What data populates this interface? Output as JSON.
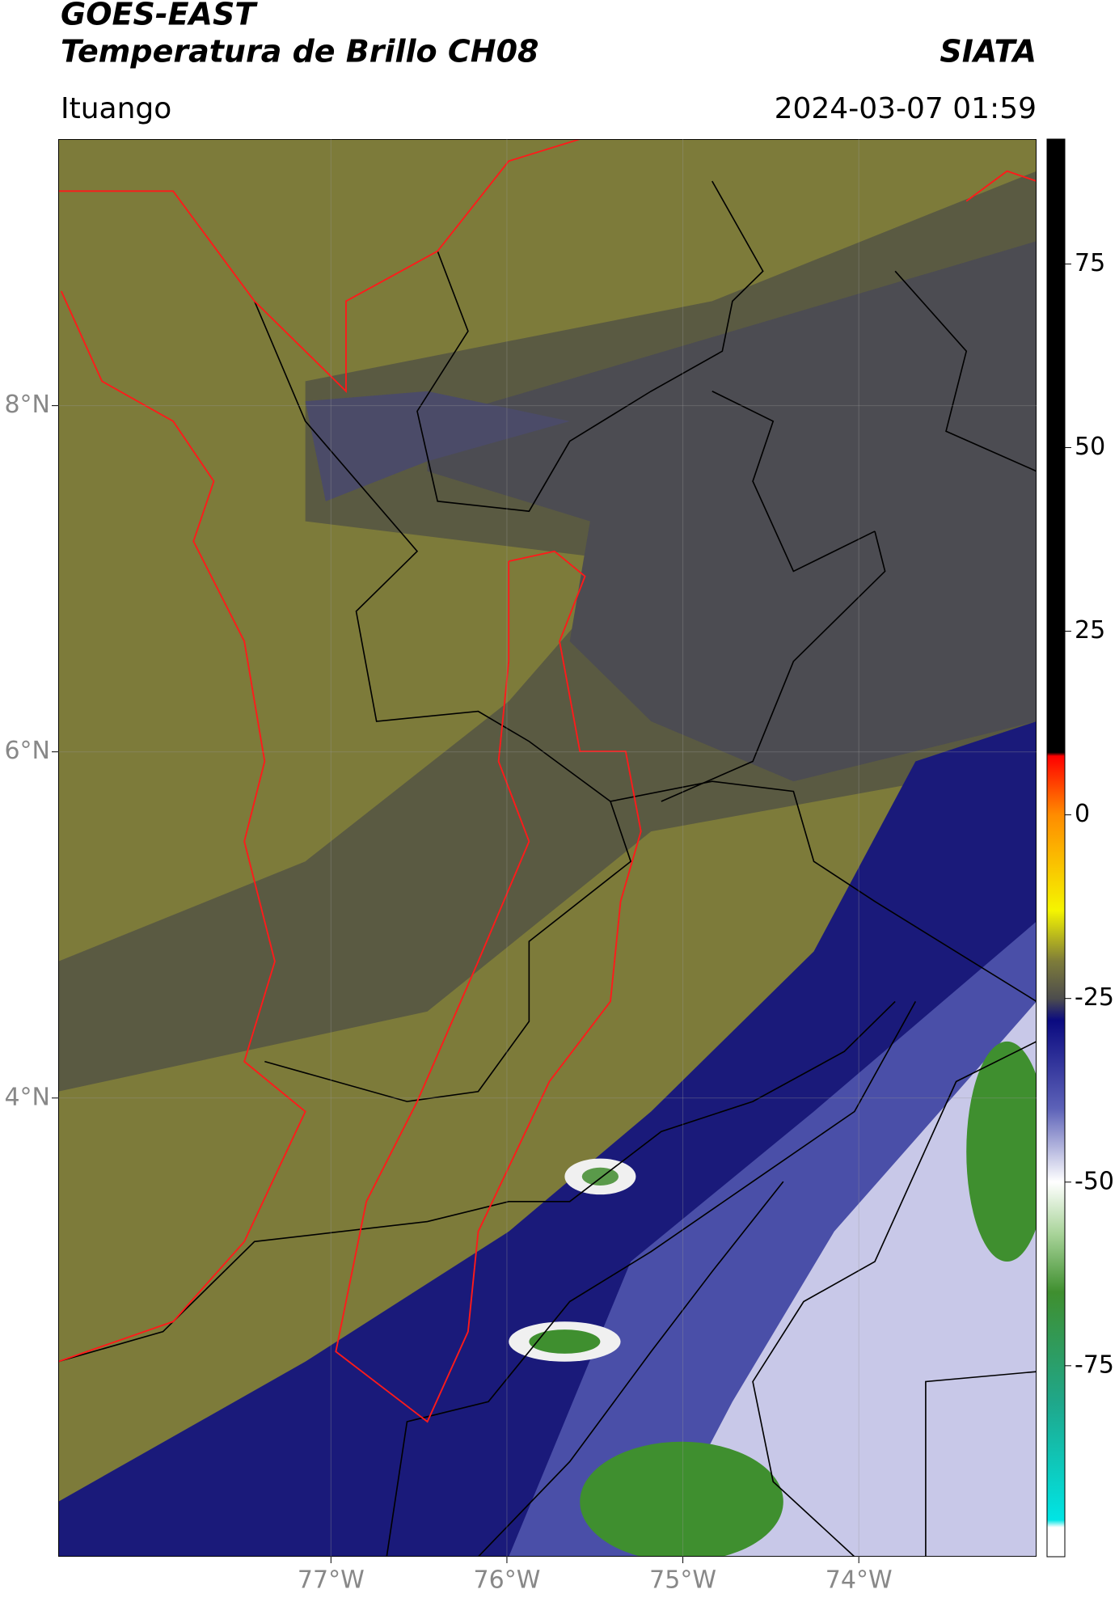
{
  "header": {
    "title": "GOES-EAST",
    "subtitle": "Temperatura de Brillo CH08",
    "brand": "SIATA",
    "location": "Ituango",
    "datetime": "2024-03-07 01:59"
  },
  "map": {
    "xlim": [
      -78.55,
      -72.99
    ],
    "ylim": [
      1.35,
      9.54
    ],
    "xticks": [
      {
        "value": -77,
        "label": "77°W"
      },
      {
        "value": -76,
        "label": "76°W"
      },
      {
        "value": -75,
        "label": "75°W"
      },
      {
        "value": -74,
        "label": "74°W"
      }
    ],
    "yticks": [
      {
        "value": 8,
        "label": "8°N"
      },
      {
        "value": 6,
        "label": "6°N"
      },
      {
        "value": 4,
        "label": "4°N"
      }
    ],
    "grid": true
  },
  "colorbar": {
    "lim": [
      -101,
      92
    ],
    "ticks": [
      75,
      50,
      25,
      0,
      -25,
      -50,
      -75
    ],
    "stops": [
      {
        "value": -101,
        "color": "#ffffff"
      },
      {
        "value": -97,
        "color": "#ffffff"
      },
      {
        "value": -96,
        "color": "#00e5e5"
      },
      {
        "value": -80,
        "color": "#1fa78a"
      },
      {
        "value": -65,
        "color": "#3f8f2f"
      },
      {
        "value": -57,
        "color": "#a9d49a"
      },
      {
        "value": -50,
        "color": "#ffffff"
      },
      {
        "value": -40,
        "color": "#5d62b8"
      },
      {
        "value": -28,
        "color": "#0a0a80"
      },
      {
        "value": -25,
        "color": "#4d4d4d"
      },
      {
        "value": -20,
        "color": "#7d7b3a"
      },
      {
        "value": -13,
        "color": "#f5f500"
      },
      {
        "value": 0,
        "color": "#ff8c00"
      },
      {
        "value": 8,
        "color": "#ff0000"
      },
      {
        "value": 8.5,
        "color": "#000000"
      },
      {
        "value": 92,
        "color": "#000000"
      }
    ]
  }
}
